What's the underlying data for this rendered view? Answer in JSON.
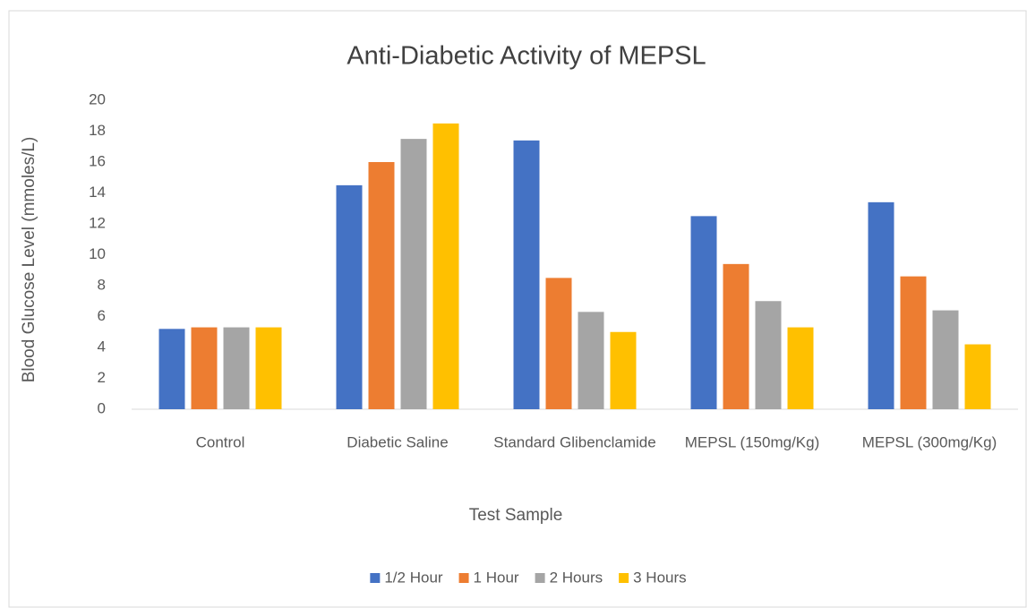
{
  "chart_data": {
    "type": "bar",
    "title": "Anti-Diabetic Activity of MEPSL",
    "x_label": "Test Sample",
    "y_label": "Blood Glucose Level (mmoles/L)",
    "categories": [
      "Control",
      "Diabetic Saline",
      "Standard Glibenclamide",
      "MEPSL (150mg/Kg)",
      "MEPSL (300mg/Kg)"
    ],
    "series": [
      {
        "name": "1/2 Hour",
        "color": "#4472c4",
        "values": [
          5.2,
          14.5,
          17.4,
          12.5,
          13.4
        ]
      },
      {
        "name": "1 Hour",
        "color": "#ed7d31",
        "values": [
          5.3,
          16.0,
          8.5,
          9.4,
          8.6
        ]
      },
      {
        "name": "2 Hours",
        "color": "#a5a5a5",
        "values": [
          5.3,
          17.5,
          6.3,
          7.0,
          6.4
        ]
      },
      {
        "name": "3 Hours",
        "color": "#ffc000",
        "values": [
          5.3,
          18.5,
          5.0,
          5.3,
          4.2
        ]
      }
    ],
    "ylim": [
      0,
      20
    ],
    "yticks": [
      0,
      2,
      4,
      6,
      8,
      10,
      12,
      14,
      16,
      18,
      20
    ],
    "grid": false,
    "legend": "bottom"
  }
}
